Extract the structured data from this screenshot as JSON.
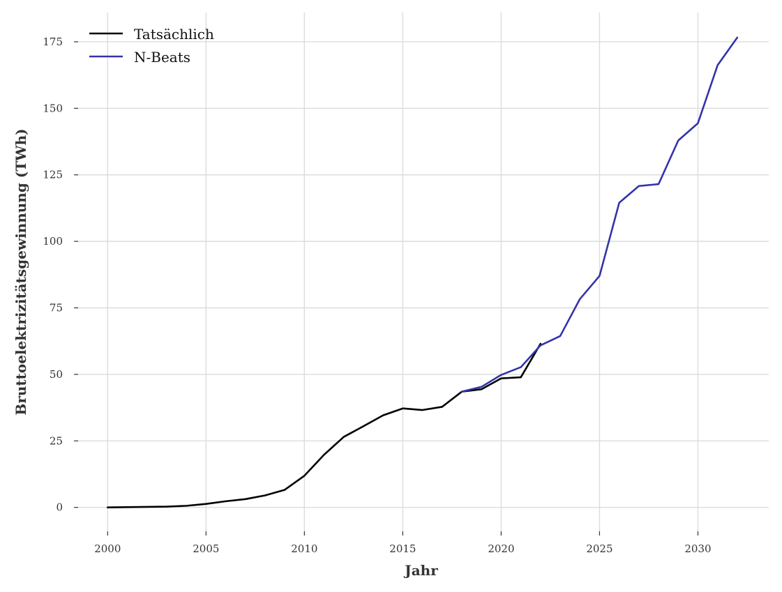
{
  "chart_data": {
    "type": "line",
    "xlabel": "Jahr",
    "ylabel": "Bruttoelektrizitätsgewinnung (TWh)",
    "xlim": [
      1998.5,
      2033.6
    ],
    "ylim": [
      -9,
      186
    ],
    "x_ticks": [
      2000,
      2005,
      2010,
      2015,
      2020,
      2025,
      2030
    ],
    "y_ticks": [
      0,
      25,
      50,
      75,
      100,
      125,
      150,
      175
    ],
    "grid": true,
    "legend_position": "top-left",
    "series": [
      {
        "name": "Tatsächlich",
        "color": "#000000",
        "x": [
          2000,
          2001,
          2002,
          2003,
          2004,
          2005,
          2006,
          2007,
          2008,
          2009,
          2010,
          2011,
          2012,
          2013,
          2014,
          2015,
          2016,
          2017,
          2018,
          2019,
          2020,
          2021,
          2022
        ],
        "y": [
          0.0,
          0.1,
          0.2,
          0.3,
          0.6,
          1.3,
          2.3,
          3.1,
          4.5,
          6.6,
          11.9,
          19.8,
          26.5,
          30.5,
          34.6,
          37.2,
          36.6,
          37.8,
          43.5,
          44.4,
          48.5,
          48.9,
          61.5
        ]
      },
      {
        "name": "N-Beats",
        "color": "#3333aa",
        "x": [
          2018,
          2019,
          2020,
          2021,
          2022,
          2023,
          2024,
          2025,
          2026,
          2027,
          2028,
          2029,
          2030,
          2031,
          2032
        ],
        "y": [
          43.5,
          45.3,
          49.8,
          52.7,
          60.9,
          64.4,
          78.3,
          87.0,
          114.5,
          120.8,
          121.5,
          137.9,
          144.4,
          166.2,
          176.6
        ]
      }
    ]
  }
}
